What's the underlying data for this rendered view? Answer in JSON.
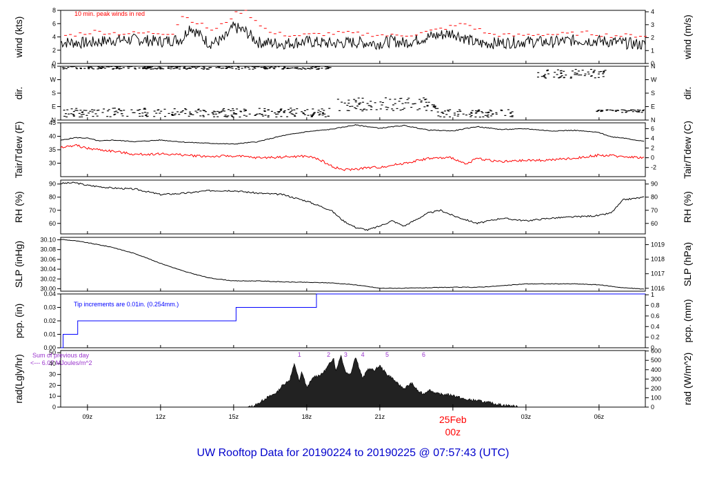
{
  "footer_title": "UW Rooftop Data for 20190224  to  20190225 @ 07:57:43  (UTC)",
  "date_label": "25Feb",
  "date_sublabel": "00z",
  "x_ticks": [
    "09z",
    "12z",
    "15z",
    "18z",
    "21z",
    "00z",
    "03z",
    "06z"
  ],
  "x_tick_hours": [
    9,
    12,
    15,
    18,
    21,
    24,
    27,
    30
  ],
  "x_range_hours": [
    7.9,
    31.9
  ],
  "colors": {
    "primary": "#000000",
    "peak": "#ff0000",
    "dew": "#ff0000",
    "precip": "#0000ff",
    "annotation": "#9932cc",
    "footer": "#0000cc"
  },
  "chart_data": [
    {
      "type": "line",
      "id": "wind",
      "ylabel_left": "wind (kts)",
      "ylabel_right": "wind (m/s)",
      "left_ticks": [
        0,
        2,
        4,
        6,
        8
      ],
      "right_ticks": [
        0,
        1,
        2,
        3,
        4
      ],
      "ylim": [
        0,
        8
      ],
      "right_ylim": [
        0,
        4.11
      ],
      "annotation": "10 min. peak winds in red",
      "series": [
        {
          "name": "wind",
          "x": [
            7.9,
            9,
            10,
            11,
            12,
            12.9,
            13.2,
            14,
            14.6,
            15,
            15.5,
            16,
            17,
            18,
            19,
            20,
            21,
            21.5,
            22,
            23,
            24,
            25,
            26,
            27,
            28,
            29,
            30,
            31,
            31.9
          ],
          "y": [
            3.2,
            3.1,
            3.5,
            3.6,
            3.3,
            3.7,
            5.6,
            3.0,
            3.6,
            5.5,
            4.8,
            3.2,
            3.0,
            3.3,
            3.0,
            3.2,
            3.0,
            3.4,
            3.1,
            4.0,
            4.6,
            3.0,
            3.1,
            3.3,
            3.2,
            3.5,
            3.4,
            3.1,
            2.8
          ]
        }
      ],
      "peaks": {
        "x": [
          8.2,
          9.3,
          10.4,
          11.5,
          12.5,
          12.9,
          14.2,
          15.2,
          15.5,
          16.5,
          17.5,
          18.5,
          19.5,
          20.5,
          21.5,
          22.5,
          23.5,
          24.5,
          25.5,
          26.5,
          27.5,
          28.5,
          29.5,
          30.5,
          31.5
        ],
        "y": [
          4.2,
          4.8,
          4.5,
          4.6,
          4.6,
          7.2,
          4.9,
          7.8,
          7.8,
          4.6,
          4.2,
          4.4,
          4.6,
          4.4,
          4.2,
          4.4,
          5.2,
          6.0,
          4.4,
          4.2,
          4.4,
          4.4,
          4.6,
          4.2,
          4.2
        ]
      }
    },
    {
      "type": "scatter",
      "id": "dir",
      "ylabel_left": "dir.",
      "ylabel_right": "dir.",
      "left_ticks": [
        "N",
        "E",
        "S",
        "W",
        "N"
      ],
      "right_ticks": [
        "N",
        "E",
        "S",
        "W",
        "N"
      ],
      "ylim": [
        0,
        360
      ],
      "clusters": [
        {
          "x": [
            8,
            19
          ],
          "y": [
            20,
            80
          ]
        },
        {
          "x": [
            8,
            19
          ],
          "y": [
            340,
            360
          ]
        },
        {
          "x": [
            19.3,
            23.4
          ],
          "y": [
            60,
            150
          ]
        },
        {
          "x": [
            23.4,
            26.5
          ],
          "y": [
            20,
            70
          ]
        },
        {
          "x": [
            27.5,
            30.3
          ],
          "y": [
            280,
            340
          ]
        },
        {
          "x": [
            29.9,
            31.9
          ],
          "y": [
            50,
            70
          ]
        }
      ]
    },
    {
      "type": "line",
      "id": "temp",
      "ylabel_left": "Tair/Tdew (F)",
      "ylabel_right": "Tair/Tdew (C)",
      "left_ticks": [
        30,
        35,
        40,
        45
      ],
      "right_ticks": [
        -2,
        0,
        2,
        4,
        6
      ],
      "ylim": [
        25,
        45
      ],
      "right_ylim": [
        -3.9,
        7.2
      ],
      "series": [
        {
          "name": "Tair",
          "x": [
            7.9,
            8.5,
            9,
            9.5,
            10,
            11,
            12,
            13,
            14,
            15,
            16,
            17,
            18,
            19,
            20,
            21,
            22,
            23,
            24,
            25,
            26,
            27,
            28,
            29,
            30,
            30.5,
            31,
            31.9
          ],
          "y": [
            38.5,
            39.5,
            39.3,
            38.2,
            38.6,
            38.0,
            38.6,
            37.8,
            37.4,
            37.1,
            38.0,
            40.2,
            41.7,
            42.6,
            44.2,
            43.0,
            44.0,
            42.3,
            42.0,
            43.6,
            42.5,
            42.8,
            42.0,
            42.2,
            41.4,
            39.8,
            39.4,
            38.0
          ]
        },
        {
          "name": "Tdew",
          "x": [
            7.9,
            8.5,
            9,
            10,
            11,
            12,
            13,
            14,
            15,
            16,
            17,
            18,
            18.5,
            19,
            19.5,
            20,
            20.5,
            21,
            22,
            23,
            24,
            24.5,
            25,
            26,
            27,
            28,
            29,
            30,
            31,
            31.9
          ],
          "y": [
            35.7,
            36.7,
            35.5,
            34.5,
            33.2,
            33.5,
            33.0,
            32.5,
            32.7,
            32.0,
            32.3,
            32.6,
            31.5,
            29.0,
            27.5,
            27.8,
            28.3,
            28.5,
            30.0,
            31.8,
            32.0,
            29.5,
            31.8,
            30.5,
            31.0,
            31.2,
            31.8,
            33.0,
            32.5,
            32.0
          ]
        }
      ]
    },
    {
      "type": "line",
      "id": "rh",
      "ylabel_left": "RH (%)",
      "ylabel_right": "RH (%)",
      "left_ticks": [
        60,
        70,
        80,
        90
      ],
      "right_ticks": [
        60,
        70,
        80,
        90
      ],
      "ylim": [
        52,
        93
      ],
      "series": [
        {
          "name": "RH",
          "x": [
            7.9,
            8.5,
            9,
            10,
            11,
            12,
            13,
            14,
            15,
            16,
            17,
            18,
            19,
            19.5,
            20,
            20.5,
            21,
            21.5,
            22,
            23,
            23.5,
            24,
            25,
            26,
            27,
            28,
            29,
            30,
            30.5,
            31,
            31.9
          ],
          "y": [
            90.5,
            91,
            89,
            87,
            86,
            82,
            83,
            85,
            85,
            83,
            82,
            77,
            70,
            62,
            57,
            55,
            58,
            62,
            58,
            68,
            70,
            66,
            60,
            64,
            62,
            64,
            65,
            66,
            68,
            78,
            80
          ]
        }
      ]
    },
    {
      "type": "line",
      "id": "slp",
      "ylabel_left": "SLP (inHg)",
      "ylabel_right": "SLP (hPa)",
      "left_ticks": [
        "30.00",
        "30.02",
        "30.04",
        "30.06",
        "30.08",
        "30.10"
      ],
      "right_ticks": [
        1016,
        1017,
        1018,
        1019
      ],
      "ylim": [
        29.995,
        30.105
      ],
      "right_ylim": [
        1015.8,
        1019.5
      ],
      "series": [
        {
          "name": "SLP",
          "x": [
            7.9,
            8.5,
            9,
            10,
            11,
            12,
            13,
            14,
            15,
            16,
            17,
            18,
            19,
            20,
            21,
            22,
            23,
            24,
            25,
            26,
            27,
            28,
            29,
            30,
            31,
            31.9
          ],
          "y": [
            30.101,
            30.098,
            30.094,
            30.085,
            30.071,
            30.052,
            30.035,
            30.022,
            30.016,
            30.016,
            30.014,
            30.013,
            30.012,
            30.008,
            30.001,
            30.001,
            30.002,
            30.003,
            30.003,
            30.006,
            30.01,
            30.01,
            30.01,
            30.008,
            30.002,
            29.999
          ]
        }
      ]
    },
    {
      "type": "line",
      "id": "pcp",
      "ylabel_left": "pcp. (in)",
      "ylabel_right": "pcp. (mm)",
      "left_ticks": [
        "0.00",
        "0.01",
        "0.02",
        "0.03",
        "0.04"
      ],
      "right_ticks": [
        "0",
        "0.2",
        "0.4",
        "0.6",
        "0.8",
        "1"
      ],
      "ylim": [
        0,
        0.04
      ],
      "right_ylim": [
        0,
        1.016
      ],
      "annotation": "Tip increments are 0.01in. (0.254mm.)",
      "series": [
        {
          "name": "pcp",
          "x": [
            7.9,
            8.0,
            8.0,
            8.6,
            8.6,
            15.1,
            15.1,
            18.4,
            18.4,
            31.9
          ],
          "y": [
            0,
            0,
            0.01,
            0.01,
            0.02,
            0.02,
            0.03,
            0.03,
            0.04,
            0.04
          ]
        }
      ]
    },
    {
      "type": "area",
      "id": "rad",
      "ylabel_left": "rad(Lgly/hr)",
      "ylabel_right": "rad (W/m^2)",
      "left_ticks": [
        0,
        10,
        20,
        30,
        40,
        50
      ],
      "right_ticks": [
        0,
        100,
        200,
        300,
        400,
        500,
        600
      ],
      "ylim": [
        0,
        52
      ],
      "right_ylim": [
        0,
        605
      ],
      "annotation_lines": [
        "Sum of previous day",
        "<--- 6.07 MJoules/m^2"
      ],
      "markers": [
        "1",
        "2",
        "3",
        "4",
        "5",
        "6"
      ],
      "marker_hours": [
        17.7,
        18.9,
        19.6,
        20.3,
        21.3,
        22.8
      ],
      "series": [
        {
          "name": "rad",
          "x": [
            15.6,
            15.8,
            16,
            16.3,
            16.5,
            16.8,
            17,
            17.3,
            17.5,
            17.7,
            17.8,
            18,
            18.3,
            18.6,
            18.8,
            19,
            19.1,
            19.2,
            19.4,
            19.5,
            19.6,
            19.8,
            20,
            20.1,
            20.3,
            20.5,
            20.8,
            21,
            21.3,
            21.5,
            21.7,
            22,
            22.3,
            22.6,
            22.8,
            23,
            23.4,
            24,
            24.5,
            25,
            25.5,
            26,
            26.5,
            26.7
          ],
          "y": [
            0,
            1,
            3,
            8,
            10,
            14,
            20,
            25,
            40,
            23,
            33,
            18,
            28,
            30,
            35,
            42,
            46,
            33,
            48,
            40,
            32,
            30,
            47,
            40,
            26,
            35,
            34,
            38,
            30,
            27,
            22,
            17,
            22,
            14,
            12,
            16,
            12,
            11,
            7,
            6,
            4,
            2,
            1,
            0
          ]
        }
      ]
    }
  ]
}
